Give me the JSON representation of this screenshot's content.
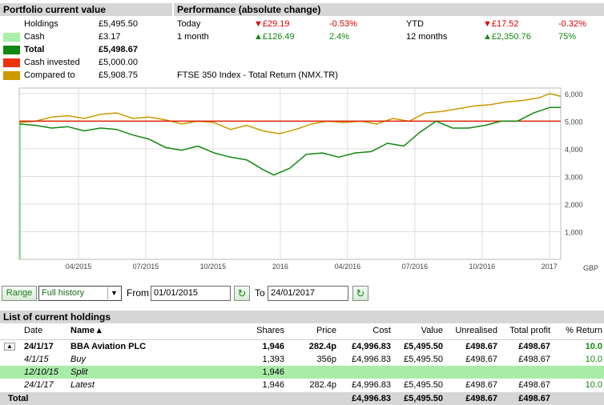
{
  "portfolio": {
    "header": "Portfolio current value",
    "rows": [
      {
        "label": "Holdings",
        "value": "£5,495.50"
      },
      {
        "label": "Cash",
        "value": "£3.17",
        "color": "#aaf0aa"
      },
      {
        "label": "Total",
        "value": "£5,498.67",
        "color": "#118811"
      },
      {
        "label": "Cash invested",
        "value": "£5,000.00",
        "color": "#ee3311"
      },
      {
        "label": "Compared to",
        "value": "£5,908.75",
        "color": "#cc9900"
      }
    ]
  },
  "performance": {
    "header": "Performance (absolute change)",
    "today": {
      "label": "Today",
      "abs": "£29.19",
      "pct": "-0.53%"
    },
    "month": {
      "label": "1 month",
      "abs": "£126.49",
      "pct": "2.4%"
    },
    "ytd": {
      "label": "YTD",
      "abs": "£17.52",
      "pct": "-0.32%"
    },
    "year": {
      "label": "12 months",
      "abs": "£2,350.76",
      "pct": "75%"
    },
    "benchmark": "FTSE 350 Index - Total Return (NMX.TR)"
  },
  "chart_data": {
    "type": "line",
    "x_ticks": [
      "04/2015",
      "07/2015",
      "10/2015",
      "2016",
      "04/2016",
      "07/2016",
      "10/2016",
      "2017"
    ],
    "y_ticks": [
      "1,000",
      "2,000",
      "3,000",
      "4,000",
      "5,000",
      "6,000"
    ],
    "ylim": [
      0,
      6200
    ],
    "unit_label": "GBP",
    "grid": true,
    "series": [
      {
        "key": "compared",
        "color": "#cc9900",
        "points": [
          [
            0,
            4950
          ],
          [
            0.03,
            5000
          ],
          [
            0.06,
            5150
          ],
          [
            0.09,
            5200
          ],
          [
            0.12,
            5100
          ],
          [
            0.15,
            5250
          ],
          [
            0.18,
            5300
          ],
          [
            0.21,
            5100
          ],
          [
            0.24,
            5150
          ],
          [
            0.27,
            5050
          ],
          [
            0.3,
            4900
          ],
          [
            0.33,
            5000
          ],
          [
            0.36,
            4950
          ],
          [
            0.39,
            4700
          ],
          [
            0.42,
            4850
          ],
          [
            0.45,
            4650
          ],
          [
            0.48,
            4550
          ],
          [
            0.51,
            4700
          ],
          [
            0.54,
            4900
          ],
          [
            0.57,
            5000
          ],
          [
            0.6,
            4950
          ],
          [
            0.63,
            5000
          ],
          [
            0.66,
            4900
          ],
          [
            0.69,
            5100
          ],
          [
            0.72,
            5000
          ],
          [
            0.75,
            5300
          ],
          [
            0.78,
            5350
          ],
          [
            0.81,
            5450
          ],
          [
            0.84,
            5550
          ],
          [
            0.87,
            5600
          ],
          [
            0.9,
            5700
          ],
          [
            0.93,
            5750
          ],
          [
            0.96,
            5850
          ],
          [
            0.98,
            6000
          ],
          [
            1.0,
            5900
          ]
        ]
      },
      {
        "key": "cash_invested",
        "color": "#dd2200",
        "points": [
          [
            0,
            5000
          ],
          [
            1.0,
            5000
          ]
        ]
      },
      {
        "key": "total",
        "color": "#118811",
        "points": [
          [
            0,
            4900
          ],
          [
            0.03,
            4850
          ],
          [
            0.06,
            4750
          ],
          [
            0.09,
            4800
          ],
          [
            0.12,
            4650
          ],
          [
            0.15,
            4750
          ],
          [
            0.18,
            4700
          ],
          [
            0.21,
            4500
          ],
          [
            0.24,
            4350
          ],
          [
            0.27,
            4050
          ],
          [
            0.3,
            3950
          ],
          [
            0.33,
            4100
          ],
          [
            0.36,
            3850
          ],
          [
            0.39,
            3700
          ],
          [
            0.42,
            3600
          ],
          [
            0.45,
            3250
          ],
          [
            0.47,
            3050
          ],
          [
            0.5,
            3300
          ],
          [
            0.53,
            3800
          ],
          [
            0.56,
            3850
          ],
          [
            0.59,
            3700
          ],
          [
            0.62,
            3850
          ],
          [
            0.65,
            3900
          ],
          [
            0.68,
            4200
          ],
          [
            0.71,
            4100
          ],
          [
            0.74,
            4600
          ],
          [
            0.77,
            5000
          ],
          [
            0.8,
            4750
          ],
          [
            0.83,
            4750
          ],
          [
            0.86,
            4850
          ],
          [
            0.89,
            5000
          ],
          [
            0.92,
            5000
          ],
          [
            0.95,
            5300
          ],
          [
            0.98,
            5500
          ],
          [
            1.0,
            5500
          ]
        ]
      }
    ]
  },
  "controls": {
    "range_label": "Range",
    "range_value": "Full history",
    "from_label": "From",
    "from_value": "01/01/2015",
    "to_label": "To",
    "to_value": "24/01/2017"
  },
  "holdings": {
    "header": "List of current holdings",
    "columns": {
      "date": "Date",
      "name": "Name ▴",
      "shares": "Shares",
      "price": "Price",
      "cost": "Cost",
      "value": "Value",
      "unrealised": "Unrealised",
      "profit": "Total profit",
      "ret": "% Return"
    },
    "main_row": {
      "date": "24/1/17",
      "name": "BBA Aviation PLC",
      "shares": "1,946",
      "price": "282.4p",
      "cost": "£4,996.83",
      "value": "£5,495.50",
      "unrealised": "£498.67",
      "profit": "£498.67",
      "ret": "10.0"
    },
    "sub_rows": [
      {
        "date": "4/1/15",
        "name": "Buy",
        "shares": "1,393",
        "price": "356p",
        "cost": "£4,996.83",
        "value": "£5,495.50",
        "unrealised": "£498.67",
        "profit": "£498.67",
        "ret": "10.0"
      },
      {
        "date": "12/10/15",
        "name": "Split",
        "shares": "1,946",
        "price": "",
        "cost": "",
        "value": "",
        "unrealised": "",
        "profit": "",
        "ret": ""
      },
      {
        "date": "24/1/17",
        "name": "Latest",
        "shares": "1,946",
        "price": "282.4p",
        "cost": "£4,996.83",
        "value": "£5,495.50",
        "unrealised": "£498.67",
        "profit": "£498.67",
        "ret": "10.0"
      }
    ],
    "total_row": {
      "label": "Total",
      "cost": "£4,996.83",
      "value": "£5,495.50",
      "unrealised": "£498.67",
      "profit": "£498.67"
    }
  }
}
